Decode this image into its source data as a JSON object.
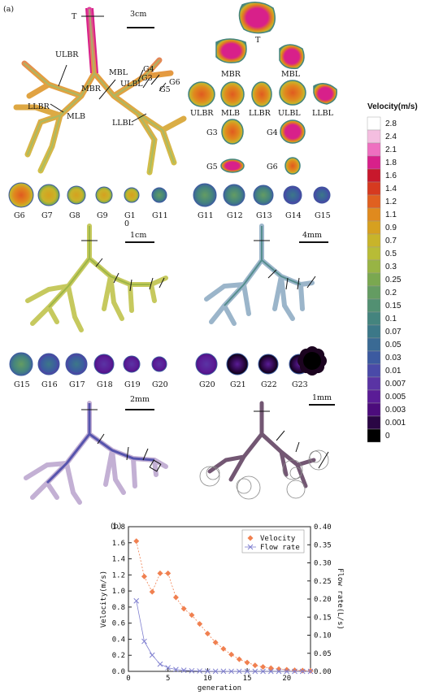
{
  "panel_a": {
    "label": "(a)",
    "scalebars": [
      "3cm",
      "1cm",
      "4mm",
      "2mm",
      "1mm"
    ],
    "tree_labels": {
      "T": "T",
      "ULBR": "ULBR",
      "MBR": "MBR",
      "MBL": "MBL",
      "ULBL": "ULBL",
      "G3": "G3",
      "G4": "G4",
      "G5": "G5",
      "G6": "G6",
      "LLBR": "LLBR",
      "MLB": "MLB",
      "LLBL": "LLBL"
    },
    "sections_top": [
      {
        "label": "T",
        "color": "#d8208a"
      },
      {
        "label": "MBR",
        "color": "#d8208a"
      },
      {
        "label": "MBL",
        "color": "#d8208a"
      },
      {
        "label": "ULBR",
        "color": "#d94020"
      },
      {
        "label": "MLB",
        "color": "#e07020"
      },
      {
        "label": "LLBR",
        "color": "#e09020"
      },
      {
        "label": "ULBL",
        "color": "#d94020"
      },
      {
        "label": "LLBL",
        "color": "#d8208a"
      },
      {
        "label": "G3",
        "color": "#e08020"
      },
      {
        "label": "G4",
        "color": "#d63030"
      },
      {
        "label": "G5",
        "color": "#d8208a"
      },
      {
        "label": "G6",
        "color": "#e08020"
      }
    ],
    "row1_left": [
      "G6",
      "G7",
      "G8",
      "G9",
      "G1\n0",
      "G11"
    ],
    "row1_right": [
      "G11",
      "G12",
      "G13",
      "G14",
      "G15"
    ],
    "row2_left": [
      "G15",
      "G16",
      "G17",
      "G18",
      "G19",
      "G20"
    ],
    "row2_right": [
      "G20",
      "G21",
      "G22",
      "G23"
    ],
    "colorbar": {
      "title": "Velocity(m/s)",
      "ticks": [
        "2.8",
        "2.4",
        "2.1",
        "1.8",
        "1.6",
        "1.4",
        "1.2",
        "1.1",
        "0.9",
        "0.7",
        "0.5",
        "0.3",
        "0.25",
        "0.2",
        "0.15",
        "0.1",
        "0.07",
        "0.05",
        "0.03",
        "0.01",
        "0.007",
        "0.005",
        "0.003",
        "0.001",
        "0"
      ],
      "colors": [
        "#ffffff",
        "#f4bee0",
        "#ee6fc0",
        "#d8208a",
        "#c8182c",
        "#d63a20",
        "#e06020",
        "#e08a1e",
        "#d6a020",
        "#c8b42a",
        "#b8bc36",
        "#98b444",
        "#7aa850",
        "#649c62",
        "#529072",
        "#44847e",
        "#3c7888",
        "#3a6a94",
        "#3c5aa0",
        "#4a4aa8",
        "#5a34a4",
        "#5a1c96",
        "#4c0c7c",
        "#2a0644",
        "#000000"
      ]
    }
  },
  "chart_data": {
    "type": "line",
    "panel_label": "(b)",
    "xlabel": "generation",
    "ylabel": "Velocity(m/s)",
    "y2label": "Flow rate(L/s)",
    "xlim": [
      0,
      23
    ],
    "ylim": [
      0,
      1.8
    ],
    "y2lim": [
      0,
      0.4
    ],
    "xticks": [
      0,
      5,
      10,
      15,
      20
    ],
    "yticks": [
      "0.0",
      "0.2",
      "0.4",
      "0.6",
      "0.8",
      "1.0",
      "1.2",
      "1.4",
      "1.6",
      "1.8"
    ],
    "y2ticks": [
      "0.00",
      "0.05",
      "0.10",
      "0.15",
      "0.20",
      "0.25",
      "0.30",
      "0.35",
      "0.40"
    ],
    "legend_position": "top-right",
    "series": [
      {
        "name": "Velocity",
        "axis": "left",
        "color": "#f08050",
        "marker": "diamond",
        "x": [
          1,
          2,
          3,
          4,
          5,
          6,
          7,
          8,
          9,
          10,
          11,
          12,
          13,
          14,
          15,
          16,
          17,
          18,
          19,
          20,
          21,
          22,
          23
        ],
        "values": [
          1.62,
          1.18,
          0.99,
          1.22,
          1.22,
          0.92,
          0.78,
          0.7,
          0.59,
          0.47,
          0.36,
          0.28,
          0.21,
          0.15,
          0.11,
          0.075,
          0.055,
          0.04,
          0.028,
          0.02,
          0.014,
          0.01,
          0.007
        ]
      },
      {
        "name": "Flow rate",
        "axis": "right",
        "color": "#8080d0",
        "marker": "x",
        "x": [
          1,
          2,
          3,
          4,
          5,
          6,
          7,
          8,
          9,
          10,
          11,
          12,
          13,
          14,
          15,
          16,
          17,
          18,
          19,
          20,
          21,
          22,
          23
        ],
        "values": [
          0.195,
          0.083,
          0.045,
          0.02,
          0.01,
          0.005,
          0.003,
          0.0015,
          0.001,
          0.0005,
          0.0003,
          0.0002,
          0.0001,
          0.0001,
          0,
          0,
          0,
          0,
          0,
          0,
          0,
          0,
          0
        ]
      }
    ]
  }
}
